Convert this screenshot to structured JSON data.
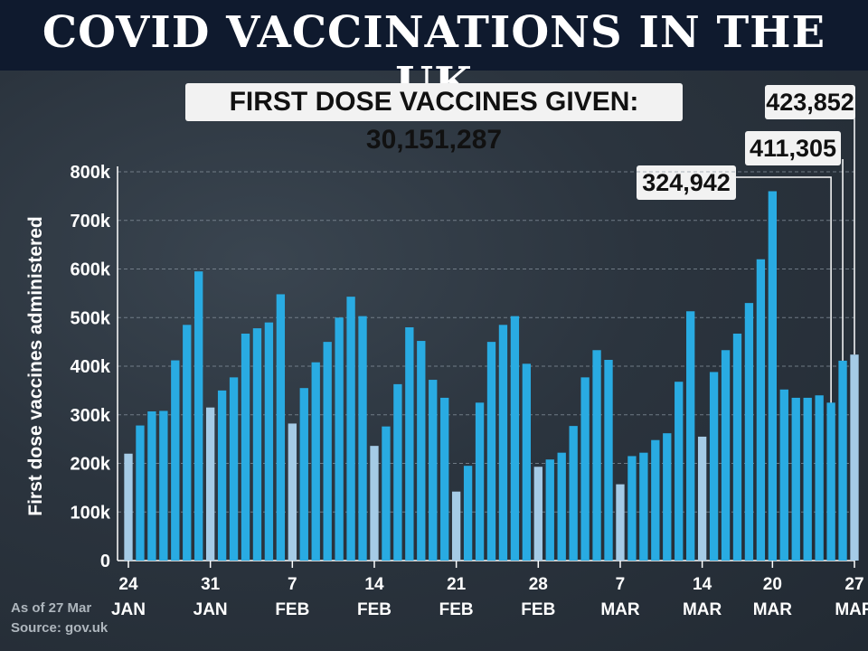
{
  "title": "COVID VACCINATIONS IN THE UK",
  "total_label": "FIRST DOSE VACCINES GIVEN: 30,151,287",
  "callouts": [
    "324,942",
    "411,305",
    "423,852"
  ],
  "footer": {
    "as_of": "As of 27 Mar",
    "source": "Source: gov.uk"
  },
  "colors": {
    "bar": "#29abe2",
    "bar_weekend": "#a5cbe6",
    "header": "#0f1a2e",
    "label_box": "#f2f2f2"
  },
  "chart_data": {
    "type": "bar",
    "ylabel": "First dose vaccines administered",
    "ylim": [
      0,
      800000
    ],
    "yticks": [
      "0",
      "100k",
      "200k",
      "300k",
      "400k",
      "500k",
      "600k",
      "700k",
      "800k"
    ],
    "grid": true,
    "xtick_labels": [
      {
        "day": "24",
        "month": "JAN"
      },
      {
        "day": "31",
        "month": "JAN"
      },
      {
        "day": "7",
        "month": "FEB"
      },
      {
        "day": "14",
        "month": "FEB"
      },
      {
        "day": "21",
        "month": "FEB"
      },
      {
        "day": "28",
        "month": "FEB"
      },
      {
        "day": "7",
        "month": "MAR"
      },
      {
        "day": "14",
        "month": "MAR"
      },
      {
        "day": "20",
        "month": "MAR"
      },
      {
        "day": "27",
        "month": "MAR"
      }
    ],
    "xtick_bar_index": [
      0,
      7,
      14,
      21,
      28,
      35,
      42,
      49,
      55,
      62
    ],
    "values": [
      220000,
      278000,
      307000,
      308000,
      412000,
      485000,
      595000,
      315000,
      350000,
      377000,
      467000,
      478000,
      490000,
      548000,
      282000,
      355000,
      408000,
      450000,
      500000,
      543000,
      503000,
      236000,
      276000,
      363000,
      480000,
      452000,
      372000,
      335000,
      142000,
      195000,
      325000,
      450000,
      485000,
      503000,
      405000,
      193000,
      208000,
      222000,
      277000,
      377000,
      433000,
      413000,
      157000,
      215000,
      222000,
      248000,
      262000,
      368000,
      513000,
      255000,
      388000,
      433000,
      467000,
      530000,
      620000,
      760000,
      352000,
      335000,
      335000,
      340000,
      324942,
      411305,
      423852
    ],
    "weekend_indices": [
      0,
      7,
      14,
      21,
      28,
      35,
      42,
      49,
      62
    ]
  }
}
